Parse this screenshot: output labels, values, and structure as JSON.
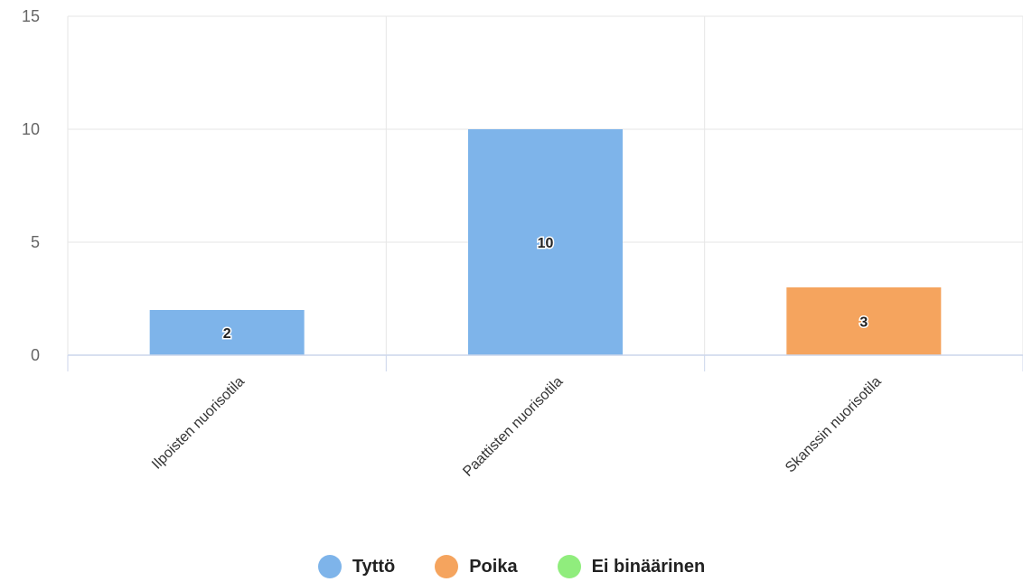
{
  "chart_data": {
    "type": "bar",
    "categories": [
      "Ilpoisten nuorisotila",
      "Paattisten nuorisotila",
      "Skanssin nuorisotila"
    ],
    "series": [
      {
        "name": "Tyttö",
        "color": "#7eb4ea",
        "values": [
          2,
          10,
          null
        ]
      },
      {
        "name": "Poika",
        "color": "#f5a45e",
        "values": [
          null,
          null,
          3
        ]
      },
      {
        "name": "Ei binäärinen",
        "color": "#90ed7d",
        "values": [
          null,
          null,
          null
        ]
      }
    ],
    "data_labels": [
      "2",
      "10",
      "3"
    ],
    "ylim": [
      0,
      15
    ],
    "yticks": [
      0,
      5,
      10,
      15
    ],
    "ytick_labels": [
      "0",
      "5",
      "10",
      "15"
    ],
    "grid": true,
    "legend_position": "bottom"
  }
}
